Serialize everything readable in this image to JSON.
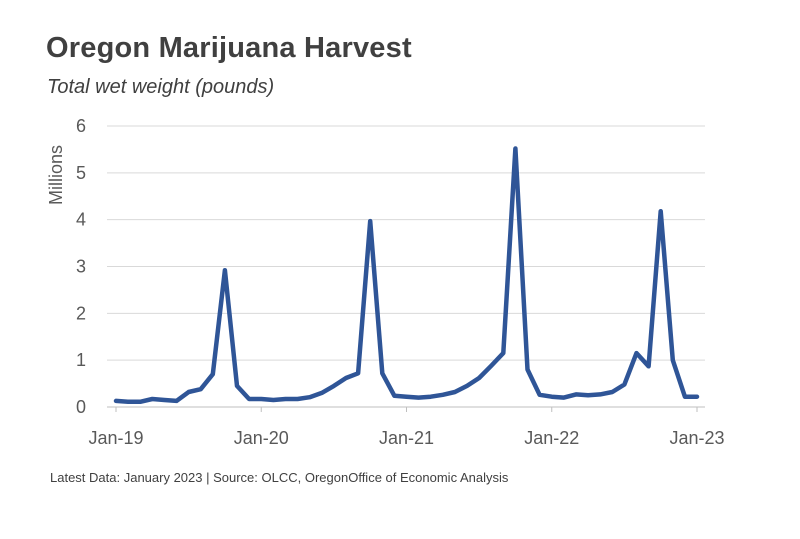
{
  "header": {
    "title": "Oregon Marijuana Harvest",
    "subtitle": "Total wet weight (pounds)"
  },
  "footer": {
    "text": "Latest Data: January 2023 | Source: OLCC, OregonOffice of Economic Analysis"
  },
  "colors": {
    "line": "#2F5597",
    "grid": "#D9D9D9",
    "text": "#404040"
  },
  "chart_data": {
    "type": "line",
    "title": "Oregon Marijuana Harvest",
    "subtitle": "Total wet weight (pounds)",
    "ylabel": "Millions",
    "xlabel": "",
    "ylim": [
      0,
      6
    ],
    "yticks": [
      0,
      1,
      2,
      3,
      4,
      5,
      6
    ],
    "xticks": [
      {
        "label": "Jan-19",
        "x": "2019-01"
      },
      {
        "label": "Jan-20",
        "x": "2020-01"
      },
      {
        "label": "Jan-21",
        "x": "2021-01"
      },
      {
        "label": "Jan-22",
        "x": "2022-01"
      },
      {
        "label": "Jan-23",
        "x": "2023-01"
      }
    ],
    "grid": true,
    "series": [
      {
        "x": [
          "2019-01",
          "2019-02",
          "2019-03",
          "2019-04",
          "2019-05",
          "2019-06",
          "2019-07",
          "2019-08",
          "2019-09",
          "2019-10",
          "2019-11",
          "2019-12",
          "2020-01",
          "2020-02",
          "2020-03",
          "2020-04",
          "2020-05",
          "2020-06",
          "2020-07",
          "2020-08",
          "2020-09",
          "2020-10",
          "2020-11",
          "2020-12",
          "2021-01",
          "2021-02",
          "2021-03",
          "2021-04",
          "2021-05",
          "2021-06",
          "2021-07",
          "2021-08",
          "2021-09",
          "2021-10",
          "2021-11",
          "2021-12",
          "2022-01",
          "2022-02",
          "2022-03",
          "2022-04",
          "2022-05",
          "2022-06",
          "2022-07",
          "2022-08",
          "2022-09",
          "2022-10",
          "2022-11",
          "2022-12",
          "2023-01"
        ],
        "values": [
          0.13,
          0.11,
          0.11,
          0.17,
          0.15,
          0.13,
          0.32,
          0.38,
          0.7,
          2.92,
          0.45,
          0.17,
          0.17,
          0.15,
          0.17,
          0.17,
          0.21,
          0.3,
          0.45,
          0.62,
          0.72,
          3.97,
          0.72,
          0.24,
          0.22,
          0.2,
          0.22,
          0.26,
          0.32,
          0.45,
          0.62,
          0.88,
          1.15,
          5.52,
          0.8,
          0.26,
          0.22,
          0.2,
          0.27,
          0.25,
          0.27,
          0.32,
          0.48,
          1.15,
          0.87,
          4.18,
          1.0,
          0.22,
          0.22
        ]
      }
    ]
  }
}
